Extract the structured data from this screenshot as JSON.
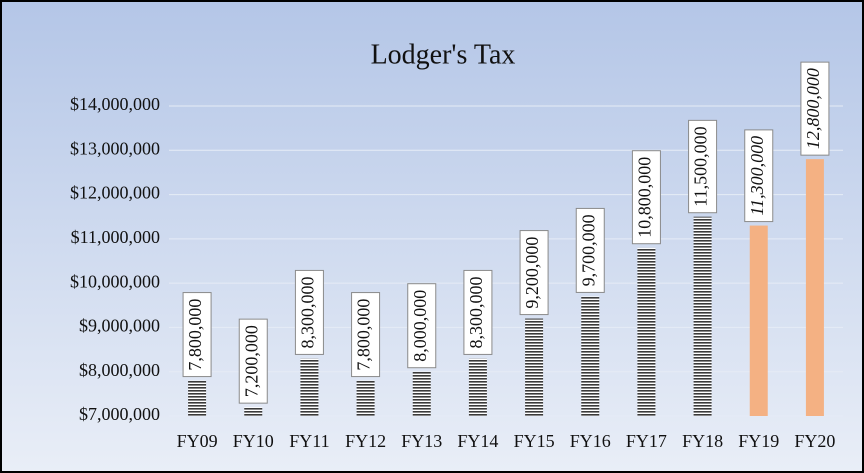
{
  "chart_data": {
    "type": "bar",
    "title": "Lodger's Tax",
    "categories": [
      "FY09",
      "FY10",
      "FY11",
      "FY12",
      "FY13",
      "FY14",
      "FY15",
      "FY16",
      "FY17",
      "FY18",
      "FY19",
      "FY20"
    ],
    "values": [
      7800000,
      7200000,
      8300000,
      7800000,
      8000000,
      8300000,
      9200000,
      9700000,
      10800000,
      11500000,
      11300000,
      12800000
    ],
    "value_labels": [
      "7,800,000",
      "7,200,000",
      "8,300,000",
      "7,800,000",
      "8,000,000",
      "8,300,000",
      "9,200,000",
      "9,700,000",
      "10,800,000",
      "11,500,000",
      "11,300,000",
      "12,800,000"
    ],
    "colors": [
      "hatch",
      "hatch",
      "hatch",
      "hatch",
      "hatch",
      "hatch",
      "hatch",
      "hatch",
      "hatch",
      "hatch",
      "#f4b183",
      "#f4b183"
    ],
    "label_italic": [
      false,
      false,
      false,
      false,
      false,
      false,
      false,
      false,
      false,
      false,
      true,
      true
    ],
    "ylim": [
      7000000,
      14000000
    ],
    "yticks": [
      {
        "value": 7000000,
        "label": "$7,000,000"
      },
      {
        "value": 8000000,
        "label": "$8,000,000"
      },
      {
        "value": 9000000,
        "label": "$9,000,000"
      },
      {
        "value": 10000000,
        "label": "$10,000,000"
      },
      {
        "value": 11000000,
        "label": "$11,000,000"
      },
      {
        "value": 12000000,
        "label": "$12,000,000"
      },
      {
        "value": 13000000,
        "label": "$13,000,000"
      },
      {
        "value": 14000000,
        "label": "$14,000,000"
      }
    ],
    "grid": true
  }
}
